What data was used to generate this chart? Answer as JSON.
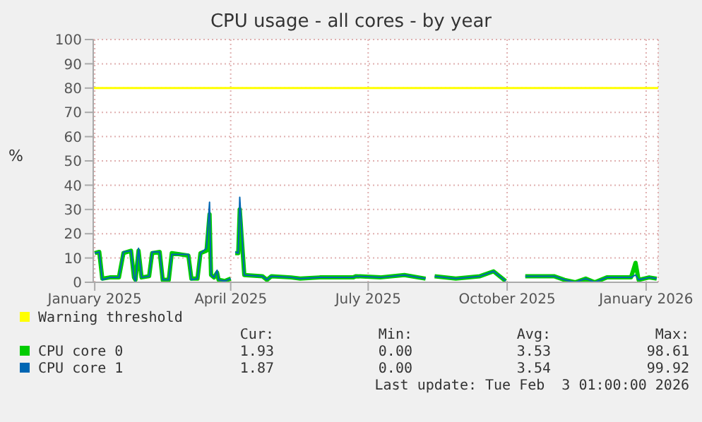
{
  "chart_data": {
    "type": "line",
    "title": "CPU usage - all cores - by year",
    "ylabel": "%",
    "x": [
      "2025-01-01",
      "2025-01-04",
      "2025-01-06",
      "2025-01-11",
      "2025-01-17",
      "2025-01-20",
      "2025-01-25",
      "2025-01-27",
      "2025-01-28",
      "2025-01-30",
      "2025-02-01",
      "2025-02-06",
      "2025-02-08",
      "2025-02-13",
      "2025-02-15",
      "2025-02-19",
      "2025-02-21",
      "2025-03-04",
      "2025-03-06",
      "2025-03-10",
      "2025-03-12",
      "2025-03-16",
      "2025-03-18",
      "2025-03-19",
      "2025-03-21",
      "2025-03-23",
      "2025-03-24",
      "2025-03-28",
      "2025-04-01",
      "2025-04-02",
      "2025-04-04",
      "2025-04-06",
      "2025-04-07",
      "2025-04-10",
      "2025-04-22",
      "2025-04-25",
      "2025-04-28",
      "2025-05-11",
      "2025-05-17",
      "2025-05-30",
      "2025-06-21",
      "2025-06-23",
      "2025-07-09",
      "2025-07-25",
      "2025-08-08",
      "2025-08-11",
      "2025-08-14",
      "2025-08-28",
      "2025-09-13",
      "2025-09-22",
      "2025-09-30",
      "2025-10-06",
      "2025-10-13",
      "2025-11-01",
      "2025-11-08",
      "2025-11-15",
      "2025-11-22",
      "2025-11-28",
      "2025-12-06",
      "2025-12-22",
      "2025-12-25",
      "2025-12-27",
      "2026-01-03",
      "2026-01-08"
    ],
    "series": [
      {
        "name": "CPU core 0",
        "color": "#00cc00",
        "values": [
          12,
          12.5,
          1.5,
          2,
          2,
          12,
          13,
          2,
          1,
          13,
          2,
          2.5,
          12,
          12.5,
          1,
          1,
          12,
          11,
          1.5,
          1.5,
          12,
          13,
          28,
          3,
          2,
          4,
          1,
          0.5,
          1.5,
          null,
          12,
          12,
          30,
          3,
          2.5,
          1,
          2.5,
          2,
          1.5,
          2,
          2,
          2.5,
          2,
          3,
          1.5,
          null,
          2.5,
          1.5,
          2.5,
          4.5,
          0.5,
          null,
          2.5,
          2.5,
          1,
          0,
          1.5,
          0,
          2,
          2,
          8,
          1,
          2,
          1.5
        ]
      },
      {
        "name": "CPU core 1",
        "color": "#0066b3",
        "values": [
          12,
          12.5,
          1,
          2,
          2,
          12.5,
          13,
          2,
          0.5,
          14,
          2,
          2.5,
          12.5,
          12.5,
          1,
          1,
          11.5,
          11.5,
          1,
          1.5,
          12,
          14,
          33,
          3,
          2,
          5,
          1,
          0.5,
          1.5,
          null,
          12.5,
          12,
          35,
          3,
          2.5,
          1,
          2.5,
          2,
          1.5,
          2,
          2,
          2.5,
          2,
          3,
          1.5,
          null,
          2.5,
          1.5,
          2.5,
          4.5,
          0.5,
          null,
          2.5,
          2.5,
          1,
          0,
          1.5,
          0,
          2,
          2,
          3,
          1,
          2,
          1.5
        ]
      }
    ],
    "xlim": [
      "2024-12-31",
      "2026-01-09"
    ],
    "xticks": [
      {
        "value": "2025-01-01",
        "label": "January 2025"
      },
      {
        "value": "2025-04-01",
        "label": "April 2025"
      },
      {
        "value": "2025-07-01",
        "label": "July 2025"
      },
      {
        "value": "2025-10-01",
        "label": "October 2025"
      },
      {
        "value": "2026-01-01",
        "label": "January 2026"
      }
    ],
    "ylim": [
      0,
      100
    ],
    "yticks": [
      0,
      10,
      20,
      30,
      40,
      50,
      60,
      70,
      80,
      90,
      100
    ],
    "ref_lines": [
      {
        "axis": "y",
        "value": 80,
        "label": "Warning threshold",
        "color": "#ffff00"
      }
    ],
    "grid": true,
    "legend": "bottom",
    "marker": "none",
    "line_style": "solid",
    "annotations": [
      "Cur:",
      "Min:",
      "Avg:",
      "Max:",
      "1.93",
      "0.00",
      "3.53",
      "98.61",
      "1.87",
      "0.00",
      "3.54",
      "99.92",
      "Last update: Tue Feb  3 01:00:00 2026"
    ]
  }
}
